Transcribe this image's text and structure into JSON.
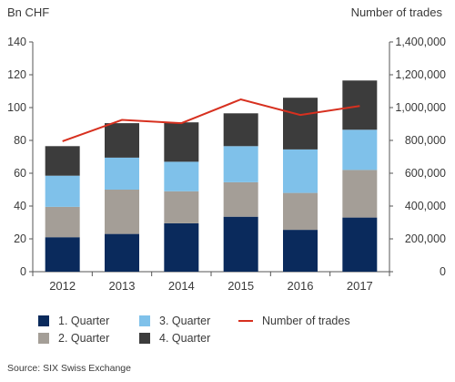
{
  "chart_data": {
    "type": "bar",
    "stacked": true,
    "left_axis_unit": "Bn CHF",
    "right_axis_unit": "Number of trades",
    "categories": [
      "2012",
      "2013",
      "2014",
      "2015",
      "2016",
      "2017"
    ],
    "ylim": [
      0,
      140
    ],
    "yticks": [
      "0",
      "20",
      "40",
      "60",
      "80",
      "100",
      "120",
      "140"
    ],
    "y2lim": [
      0,
      1400000
    ],
    "y2ticks": [
      "0",
      "200,000",
      "400,000",
      "600,000",
      "800,000",
      "1,000,000",
      "1,200,000",
      "1,400,000"
    ],
    "series": [
      {
        "name": "1. Quarter",
        "color": "#0a2a5c",
        "values": [
          21,
          23,
          29.5,
          33.5,
          25.5,
          33
        ]
      },
      {
        "name": "2. Quarter",
        "color": "#a49e97",
        "values": [
          18.5,
          27,
          19.5,
          21,
          22.5,
          29
        ]
      },
      {
        "name": "3. Quarter",
        "color": "#7fc1ea",
        "values": [
          19,
          19.5,
          18,
          22,
          26.5,
          24.5
        ]
      },
      {
        "name": "4. Quarter",
        "color": "#3c3c3c",
        "values": [
          18,
          21,
          24,
          20,
          31.5,
          30
        ]
      }
    ],
    "line_series": {
      "name": "Number of trades",
      "color": "#d7301f",
      "axis": "right",
      "values": [
        795000,
        925000,
        905000,
        1050000,
        955000,
        1010000
      ]
    },
    "legend_position": "bottom",
    "grid": false
  },
  "source": "Source: SIX Swiss Exchange"
}
